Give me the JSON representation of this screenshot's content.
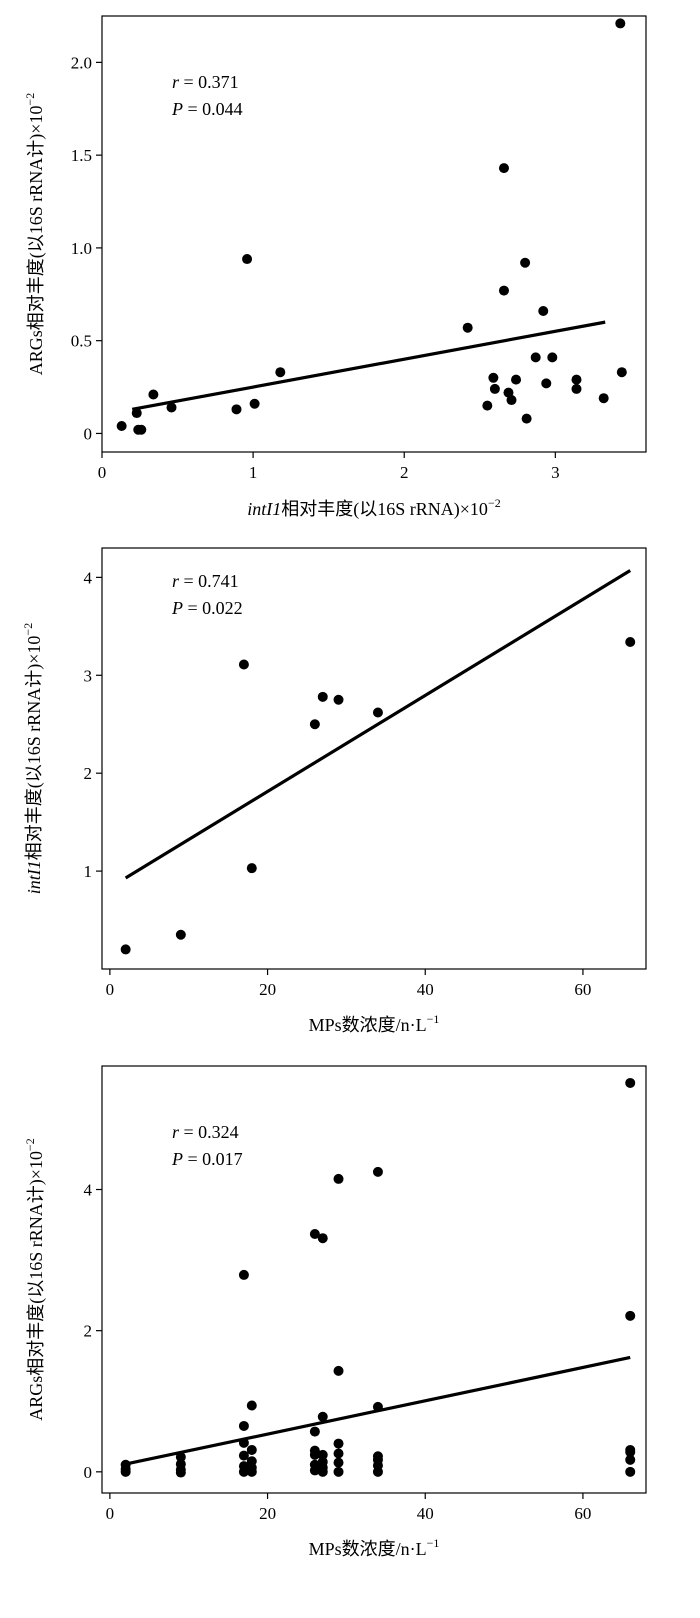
{
  "chart_data": [
    {
      "type": "scatter",
      "xlabel": "intI1相对丰度(以16S rRNA)×10",
      "xlabel_italic_prefix": "intI1",
      "xlabel_rest": "相对丰度(以16S rRNA)×10",
      "xlabel_sup": "−2",
      "ylabel_rest": "ARGs相对丰度(以16S rRNA计)×10",
      "ylabel_sup": "−2",
      "xlim": [
        0,
        3.6
      ],
      "ylim": [
        -0.1,
        2.25
      ],
      "xticks": [
        0,
        1,
        2,
        3
      ],
      "xtick_labels": [
        "0",
        "1",
        "2",
        "3"
      ],
      "yticks": [
        0,
        0.5,
        1.0,
        1.5,
        2.0
      ],
      "ytick_labels": [
        "0",
        "0.5",
        "1.0",
        "1.5",
        "2.0"
      ],
      "stats": {
        "r_label": "r",
        "r_value": " = 0.371",
        "p_label": "P",
        "p_value": " = 0.044"
      },
      "fit_line": {
        "x": [
          0.2,
          3.33
        ],
        "y": [
          0.13,
          0.6
        ]
      },
      "points": [
        {
          "x": 0.13,
          "y": 0.04
        },
        {
          "x": 0.23,
          "y": 0.11
        },
        {
          "x": 0.24,
          "y": 0.02
        },
        {
          "x": 0.26,
          "y": 0.02
        },
        {
          "x": 0.34,
          "y": 0.21
        },
        {
          "x": 0.46,
          "y": 0.14
        },
        {
          "x": 0.89,
          "y": 0.13
        },
        {
          "x": 0.96,
          "y": 0.94
        },
        {
          "x": 1.01,
          "y": 0.16
        },
        {
          "x": 1.18,
          "y": 0.33
        },
        {
          "x": 2.42,
          "y": 0.57
        },
        {
          "x": 2.55,
          "y": 0.15
        },
        {
          "x": 2.59,
          "y": 0.3
        },
        {
          "x": 2.6,
          "y": 0.24
        },
        {
          "x": 2.66,
          "y": 1.43
        },
        {
          "x": 2.66,
          "y": 0.77
        },
        {
          "x": 2.69,
          "y": 0.22
        },
        {
          "x": 2.71,
          "y": 0.18
        },
        {
          "x": 2.74,
          "y": 0.29
        },
        {
          "x": 2.8,
          "y": 0.92
        },
        {
          "x": 2.81,
          "y": 0.08
        },
        {
          "x": 2.87,
          "y": 0.41
        },
        {
          "x": 2.92,
          "y": 0.66
        },
        {
          "x": 2.94,
          "y": 0.27
        },
        {
          "x": 2.98,
          "y": 0.41
        },
        {
          "x": 3.14,
          "y": 0.29
        },
        {
          "x": 3.14,
          "y": 0.24
        },
        {
          "x": 3.32,
          "y": 0.19
        },
        {
          "x": 3.43,
          "y": 2.21
        },
        {
          "x": 3.44,
          "y": 0.33
        }
      ]
    },
    {
      "type": "scatter",
      "xlabel_rest": "MPs数浓度/n·L",
      "xlabel_sup": "−1",
      "ylabel_italic_prefix": "intI1",
      "ylabel_rest": "相对丰度(以16S rRNA计)×10",
      "ylabel_sup": "−2",
      "xlim": [
        -1,
        68
      ],
      "ylim": [
        0,
        4.3
      ],
      "xticks": [
        0,
        20,
        40,
        60
      ],
      "xtick_labels": [
        "0",
        "20",
        "40",
        "60"
      ],
      "yticks": [
        1,
        2,
        3,
        4
      ],
      "ytick_labels": [
        "1",
        "2",
        "3",
        "4"
      ],
      "stats": {
        "r_label": "r",
        "r_value": " = 0.741",
        "p_label": "P",
        "p_value": " = 0.022"
      },
      "fit_line": {
        "x": [
          2,
          66
        ],
        "y": [
          0.93,
          4.07
        ]
      },
      "points": [
        {
          "x": 2,
          "y": 0.2
        },
        {
          "x": 9,
          "y": 0.35
        },
        {
          "x": 17,
          "y": 3.11
        },
        {
          "x": 18,
          "y": 1.03
        },
        {
          "x": 26,
          "y": 2.5
        },
        {
          "x": 27,
          "y": 2.78
        },
        {
          "x": 29,
          "y": 2.75
        },
        {
          "x": 34,
          "y": 2.62
        },
        {
          "x": 66,
          "y": 3.34
        }
      ]
    },
    {
      "type": "scatter",
      "xlabel_rest": "MPs数浓度/n·L",
      "xlabel_sup": "−1",
      "ylabel_rest": "ARGs相对丰度(以16S rRNA计)×10",
      "ylabel_sup": "−2",
      "xlim": [
        -1,
        68
      ],
      "ylim": [
        -0.3,
        5.75
      ],
      "xticks": [
        0,
        20,
        40,
        60
      ],
      "xtick_labels": [
        "0",
        "20",
        "40",
        "60"
      ],
      "yticks": [
        0,
        2,
        4
      ],
      "ytick_labels": [
        "0",
        "2",
        "4"
      ],
      "stats": {
        "r_label": "r",
        "r_value": " = 0.324",
        "p_label": "P",
        "p_value": " = 0.017"
      },
      "fit_line": {
        "x": [
          2,
          66
        ],
        "y": [
          0.11,
          1.62
        ]
      },
      "points": [
        {
          "x": 2,
          "y": 0.1
        },
        {
          "x": 2,
          "y": 0.04
        },
        {
          "x": 2,
          "y": 0.0
        },
        {
          "x": 9,
          "y": 0.21
        },
        {
          "x": 9,
          "y": 0.11
        },
        {
          "x": 9,
          "y": 0.03
        },
        {
          "x": 9,
          "y": -0.01
        },
        {
          "x": 17,
          "y": 2.79
        },
        {
          "x": 17,
          "y": 0.65
        },
        {
          "x": 17,
          "y": 0.41
        },
        {
          "x": 17,
          "y": 0.23
        },
        {
          "x": 17,
          "y": 0.08
        },
        {
          "x": 17,
          "y": 0.0
        },
        {
          "x": 18,
          "y": 0.94
        },
        {
          "x": 18,
          "y": 0.31
        },
        {
          "x": 18,
          "y": 0.15
        },
        {
          "x": 18,
          "y": 0.06
        },
        {
          "x": 18,
          "y": 0.0
        },
        {
          "x": 26,
          "y": 3.37
        },
        {
          "x": 26,
          "y": 0.57
        },
        {
          "x": 26,
          "y": 0.3
        },
        {
          "x": 26,
          "y": 0.24
        },
        {
          "x": 26,
          "y": 0.1
        },
        {
          "x": 26,
          "y": 0.02
        },
        {
          "x": 27,
          "y": 3.31
        },
        {
          "x": 27,
          "y": 0.78
        },
        {
          "x": 27,
          "y": 0.24
        },
        {
          "x": 27,
          "y": 0.14
        },
        {
          "x": 27,
          "y": 0.06
        },
        {
          "x": 27,
          "y": 0.0
        },
        {
          "x": 29,
          "y": 4.15
        },
        {
          "x": 29,
          "y": 1.43
        },
        {
          "x": 29,
          "y": 0.4
        },
        {
          "x": 29,
          "y": 0.26
        },
        {
          "x": 29,
          "y": 0.13
        },
        {
          "x": 29,
          "y": 0.0
        },
        {
          "x": 34,
          "y": 4.25
        },
        {
          "x": 34,
          "y": 0.92
        },
        {
          "x": 34,
          "y": 0.22
        },
        {
          "x": 34,
          "y": 0.17
        },
        {
          "x": 34,
          "y": 0.09
        },
        {
          "x": 34,
          "y": 0.0
        },
        {
          "x": 66,
          "y": 5.51
        },
        {
          "x": 66,
          "y": 2.21
        },
        {
          "x": 66,
          "y": 0.31
        },
        {
          "x": 66,
          "y": 0.28
        },
        {
          "x": 66,
          "y": 0.17
        },
        {
          "x": 66,
          "y": 0.0
        }
      ]
    }
  ]
}
